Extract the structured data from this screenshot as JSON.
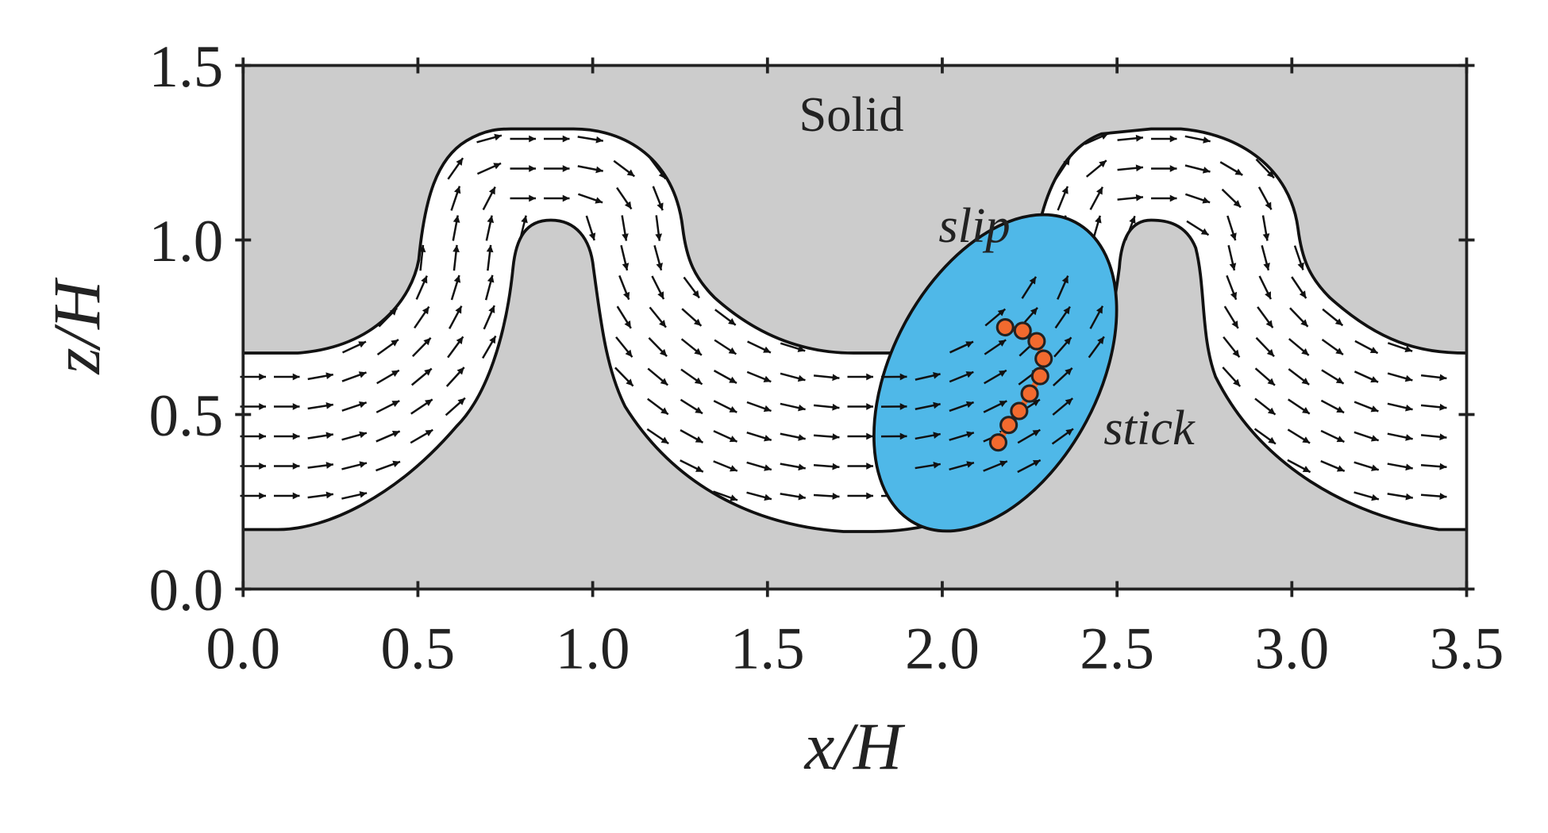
{
  "chart_data": {
    "type": "scatter",
    "x_label": "x/H",
    "y_label": "z/H",
    "annotations": {
      "solid": "Solid",
      "slip": "slip",
      "stick": "stick"
    },
    "x": [
      2.18,
      2.23,
      2.27,
      2.29,
      2.28,
      2.25,
      2.22,
      2.19,
      2.16
    ],
    "values": [
      0.75,
      0.74,
      0.71,
      0.66,
      0.61,
      0.56,
      0.51,
      0.47,
      0.42
    ],
    "color": "#f26a2e",
    "xlim": [
      0,
      3.5
    ],
    "ylim": [
      0,
      1.5
    ],
    "xticks": [
      {
        "value": 0,
        "label": "0.0"
      },
      0.5,
      {
        "value": 1,
        "label": "1.0"
      },
      1.5,
      {
        "value": 2,
        "label": "2.0"
      },
      2.5,
      {
        "value": 3,
        "label": "3.0"
      },
      3.5
    ],
    "yticks": [
      {
        "value": 0,
        "label": "0.0"
      },
      0.5,
      {
        "value": 1,
        "label": "1.0"
      },
      1.5
    ]
  }
}
